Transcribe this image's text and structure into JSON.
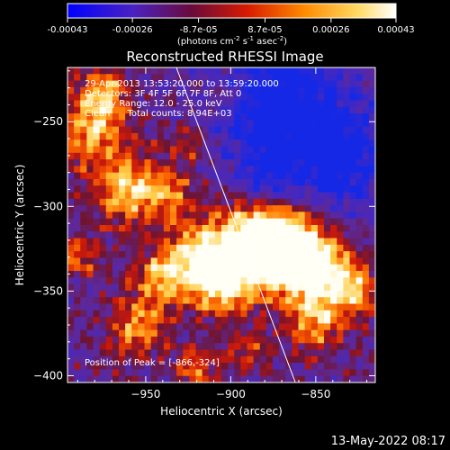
{
  "colorbar": {
    "tick_labels": [
      "-0.00043",
      "-0.00026",
      "-8.7e-05",
      "8.7e-05",
      "0.00026",
      "0.00043"
    ],
    "tick_values": [
      -0.00043,
      -0.00026,
      -8.7e-05,
      8.7e-05,
      0.00026,
      0.00043
    ],
    "range": [
      -0.00043,
      0.00043
    ],
    "unit_main": "(photons cm",
    "unit_exp1": "-2",
    "unit_mid": " s",
    "unit_exp2": "-1",
    "unit_end": " asec",
    "unit_exp3": "-2",
    "unit_close": ")",
    "colors": [
      "#0000ff",
      "#5a1fb0",
      "#7a0a20",
      "#d82000",
      "#ff8a00",
      "#ffe070",
      "#ffffff"
    ]
  },
  "chart_data": {
    "type": "heatmap",
    "title": "Reconstructed RHESSI Image",
    "xlabel": "Heliocentric X (arcsec)",
    "ylabel": "Heliocentric Y (arcsec)",
    "xlim": [
      -996,
      -815
    ],
    "ylim": [
      -404,
      -218
    ],
    "x_ticks": [
      -950,
      -900,
      -850
    ],
    "x_tick_labels": [
      "−950",
      "−900",
      "−850"
    ],
    "y_ticks": [
      -400,
      -350,
      -300,
      -250
    ],
    "y_tick_labels": [
      "−400",
      "−350",
      "−300",
      "−250"
    ],
    "limb_line": [
      [
        -932,
        -218
      ],
      [
        -862,
        -404
      ]
    ],
    "peak_position": [
      -866,
      -324
    ],
    "annotations": [
      "29-Apr-2013 13:53:20.000 to 13:59:20.000",
      "Detectors: 3F 4F 5F 6F 7F 8F, Att 0",
      "Energy Range: 12.0 - 25.0 keV",
      "Clean      Total counts: 8.94E+03"
    ],
    "peak_label": "Position of Peak = [-866,-324]",
    "grid": false,
    "colormap": "blue-purple-red-yellow-white"
  },
  "footer": {
    "timestamp": "13-May-2022 08:17"
  }
}
